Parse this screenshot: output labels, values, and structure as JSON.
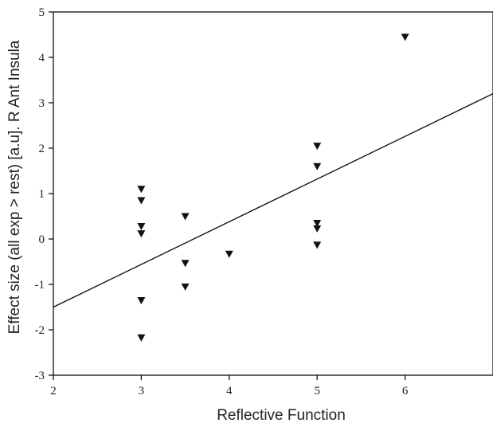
{
  "chart_data": {
    "type": "scatter",
    "title": "",
    "xlabel": "Reflective Function",
    "ylabel": "Effect size (all exp > rest) [a.u]. R Ant Insula",
    "xlim": [
      2,
      7
    ],
    "ylim": [
      -3,
      5
    ],
    "xticks": [
      2,
      3,
      4,
      5,
      6
    ],
    "yticks": [
      -3,
      -2,
      -1,
      0,
      1,
      2,
      3,
      4,
      5
    ],
    "grid": false,
    "legend": "none",
    "marker": "triangle-down",
    "marker_color": "#111111",
    "line_color": "#111111",
    "series": [
      {
        "points": [
          {
            "x": 3,
            "y": 1.1
          },
          {
            "x": 3,
            "y": 0.85
          },
          {
            "x": 3,
            "y": 0.28
          },
          {
            "x": 3,
            "y": 0.12
          },
          {
            "x": 3,
            "y": -1.35
          },
          {
            "x": 3,
            "y": -2.17
          },
          {
            "x": 3.5,
            "y": 0.5
          },
          {
            "x": 3.5,
            "y": -0.53
          },
          {
            "x": 3.5,
            "y": -1.05
          },
          {
            "x": 4,
            "y": -0.33
          },
          {
            "x": 5,
            "y": 2.05
          },
          {
            "x": 5,
            "y": 1.6
          },
          {
            "x": 5,
            "y": 0.35
          },
          {
            "x": 5,
            "y": 0.23
          },
          {
            "x": 5,
            "y": -0.13
          },
          {
            "x": 6,
            "y": 4.45
          }
        ]
      }
    ],
    "fit_line": {
      "x": [
        2,
        7
      ],
      "y": [
        -1.5,
        3.2
      ]
    }
  }
}
